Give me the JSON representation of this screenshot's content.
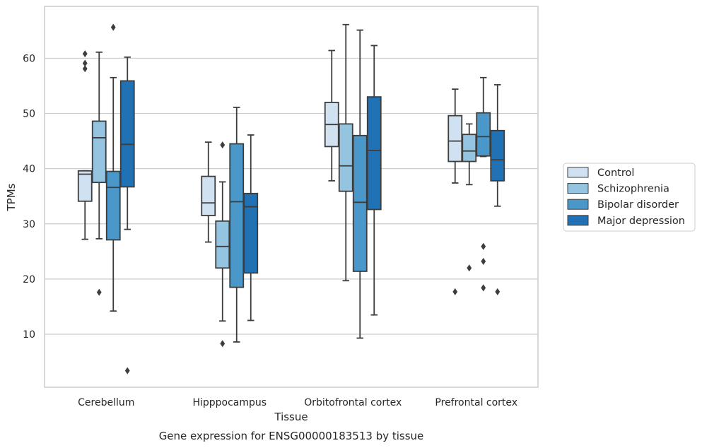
{
  "chart_data": {
    "type": "box",
    "title": "",
    "caption": "Gene expression for ENSG00000183513 by tissue",
    "xlabel": "Tissue",
    "ylabel": "TPMs",
    "ylim": [
      0.4,
      69.4
    ],
    "yticks": [
      10,
      20,
      30,
      40,
      50,
      60
    ],
    "grid": "horizontal",
    "legend_position": "right",
    "categories": [
      "Cerebellum",
      "Hipppocampus",
      "Orbitofrontal cortex",
      "Prefrontal cortex"
    ],
    "series": [
      {
        "name": "Control",
        "color": "#d0e1f2",
        "boxes": [
          {
            "whislo": 27.2,
            "q1": 34.1,
            "med": 39.0,
            "q3": 39.6,
            "whishi": 39.6,
            "fliers": [
              60.8,
              59.1,
              58.1
            ]
          },
          {
            "whislo": 26.7,
            "q1": 31.5,
            "med": 33.8,
            "q3": 38.6,
            "whishi": 44.8,
            "fliers": []
          },
          {
            "whislo": 37.8,
            "q1": 44.0,
            "med": 48.0,
            "q3": 52.0,
            "whishi": 61.4,
            "fliers": []
          },
          {
            "whislo": 37.4,
            "q1": 41.3,
            "med": 45.0,
            "q3": 49.6,
            "whishi": 54.4,
            "fliers": [
              17.7
            ]
          }
        ]
      },
      {
        "name": "Schizophrenia",
        "color": "#94c4df",
        "boxes": [
          {
            "whislo": 27.3,
            "q1": 37.5,
            "med": 45.6,
            "q3": 48.6,
            "whishi": 61.1,
            "fliers": [
              17.6
            ]
          },
          {
            "whislo": 12.4,
            "q1": 22.0,
            "med": 25.9,
            "q3": 30.5,
            "whishi": 37.6,
            "fliers": [
              44.3,
              8.3
            ]
          },
          {
            "whislo": 19.7,
            "q1": 35.9,
            "med": 40.5,
            "q3": 48.1,
            "whishi": 66.1,
            "fliers": []
          },
          {
            "whislo": 37.1,
            "q1": 41.3,
            "med": 43.2,
            "q3": 46.2,
            "whishi": 48.1,
            "fliers": [
              22.0
            ]
          }
        ]
      },
      {
        "name": "Bipolar disorder",
        "color": "#4a98c9",
        "boxes": [
          {
            "whislo": 14.2,
            "q1": 27.1,
            "med": 36.6,
            "q3": 39.5,
            "whishi": 56.5,
            "fliers": [
              65.6
            ]
          },
          {
            "whislo": 8.6,
            "q1": 18.5,
            "med": 34.0,
            "q3": 44.5,
            "whishi": 51.1,
            "fliers": []
          },
          {
            "whislo": 9.3,
            "q1": 21.4,
            "med": 33.9,
            "q3": 46.0,
            "whishi": 65.1,
            "fliers": []
          },
          {
            "whislo": 42.2,
            "q1": 42.3,
            "med": 45.8,
            "q3": 50.1,
            "whishi": 56.5,
            "fliers": [
              25.9,
              23.2,
              18.4
            ]
          }
        ]
      },
      {
        "name": "Major depression",
        "color": "#2171b5",
        "boxes": [
          {
            "whislo": 29.0,
            "q1": 36.7,
            "med": 44.4,
            "q3": 55.9,
            "whishi": 60.2,
            "fliers": [
              3.4
            ]
          },
          {
            "whislo": 12.5,
            "q1": 21.1,
            "med": 33.1,
            "q3": 35.5,
            "whishi": 46.1,
            "fliers": []
          },
          {
            "whislo": 13.5,
            "q1": 32.6,
            "med": 43.3,
            "q3": 53.0,
            "whishi": 62.3,
            "fliers": []
          },
          {
            "whislo": 33.2,
            "q1": 37.8,
            "med": 41.6,
            "q3": 46.9,
            "whishi": 55.2,
            "fliers": [
              17.7
            ]
          }
        ]
      }
    ]
  }
}
